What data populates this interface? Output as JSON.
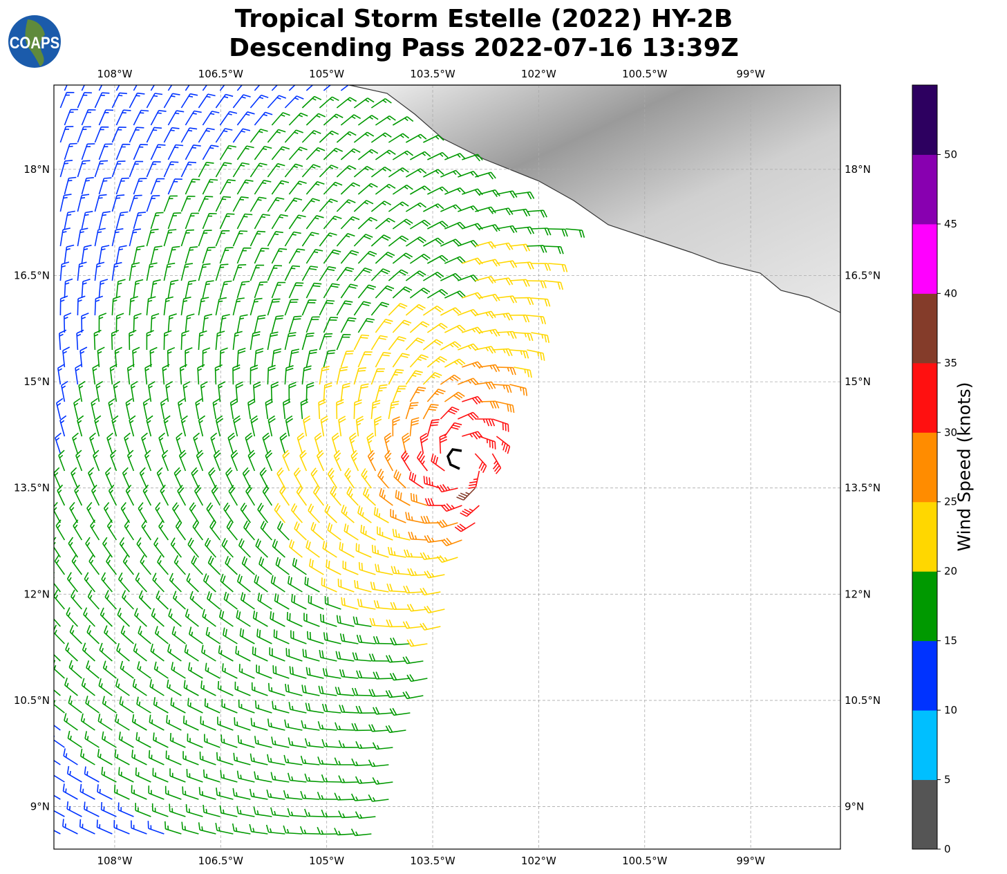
{
  "title": {
    "line1": "Tropical Storm Estelle (2022) HY-2B",
    "line2": "Descending Pass 2022-07-16 13:39Z"
  },
  "logo": {
    "text": "COAPS"
  },
  "axes": {
    "lon_ticks": [
      "108°W",
      "106.5°W",
      "105°W",
      "103.5°W",
      "102°W",
      "100.5°W",
      "99°W"
    ],
    "lon_values": [
      -108,
      -106.5,
      -105,
      -103.5,
      -102,
      -100.5,
      -99
    ],
    "lat_ticks": [
      "18°N",
      "16.5°N",
      "15°N",
      "13.5°N",
      "12°N",
      "10.5°N",
      "9°N"
    ],
    "lat_values": [
      18,
      16.5,
      15,
      13.5,
      12,
      10.5,
      9
    ],
    "lon_range": [
      -108.86,
      -97.73
    ],
    "lat_range": [
      8.4,
      19.19
    ]
  },
  "colorbar": {
    "label": "Wind Speed (knots)",
    "ticks": [
      "0",
      "5",
      "10",
      "15",
      "20",
      "25",
      "30",
      "35",
      "40",
      "45",
      "50"
    ],
    "bounds": [
      0,
      5,
      10,
      15,
      20,
      25,
      30,
      35,
      40,
      45,
      50,
      55
    ],
    "colors": [
      "#555555",
      "#00bfff",
      "#0033ff",
      "#009900",
      "#ffd700",
      "#ff8c00",
      "#ff1010",
      "#843c2a",
      "#ff00ff",
      "#8800b0",
      "#2d0060"
    ]
  },
  "chart_data": {
    "type": "wind-barb-map",
    "storm_center": {
      "lon": -103.1,
      "lat": 13.9
    },
    "max_wind_kt": 35,
    "units": "knots"
  }
}
